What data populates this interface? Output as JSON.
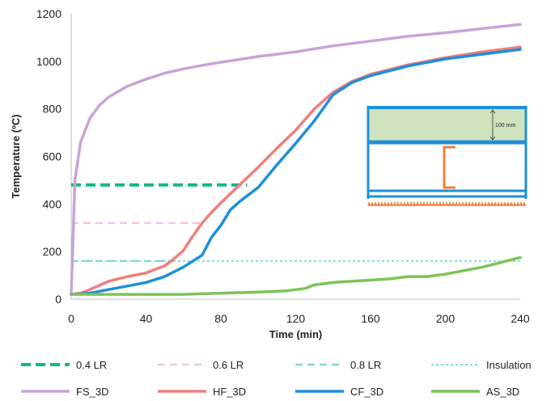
{
  "chart_data": {
    "type": "line",
    "xlabel": "Time (min)",
    "ylabel": "Temperature (ºC)",
    "xlim": [
      0,
      240
    ],
    "ylim": [
      0,
      1200
    ],
    "xticks": [
      0,
      40,
      80,
      120,
      160,
      200,
      240
    ],
    "yticks": [
      0,
      200,
      400,
      600,
      800,
      1000,
      1200
    ],
    "grid": false,
    "legend_position": "bottom",
    "colors": {
      "lr04": "#10b981",
      "lr06": "#f0c4e8",
      "lr08": "#7dd9d6",
      "insulation": "#80dede",
      "fs": "#c9a3d9",
      "hf": "#f07f7a",
      "cf": "#1f8fd9",
      "as": "#7cc456"
    },
    "series": [
      {
        "name": "0.4 LR",
        "style": "dashed-thick",
        "color_key": "lr04",
        "x": [
          0,
          94
        ],
        "y": [
          480,
          480
        ]
      },
      {
        "name": "0.6 LR",
        "style": "dashed-thin",
        "color_key": "lr06",
        "x": [
          0,
          70
        ],
        "y": [
          320,
          320
        ]
      },
      {
        "name": "0.8 LR",
        "style": "dashed-thin",
        "color_key": "lr08",
        "x": [
          0,
          57
        ],
        "y": [
          160,
          160
        ]
      },
      {
        "name": "Insulation",
        "style": "dotted",
        "color_key": "insulation",
        "x": [
          0,
          240
        ],
        "y": [
          160,
          160
        ]
      },
      {
        "name": "FS_3D",
        "style": "solid",
        "color_key": "fs",
        "x": [
          0,
          2,
          5,
          10,
          15,
          20,
          30,
          40,
          50,
          60,
          70,
          80,
          90,
          100,
          120,
          140,
          160,
          180,
          200,
          220,
          240
        ],
        "y": [
          20,
          500,
          660,
          760,
          815,
          850,
          895,
          925,
          950,
          968,
          983,
          996,
          1008,
          1020,
          1040,
          1065,
          1085,
          1105,
          1120,
          1138,
          1155
        ]
      },
      {
        "name": "HF_3D",
        "style": "solid",
        "color_key": "hf",
        "x": [
          0,
          5,
          10,
          20,
          30,
          40,
          50,
          55,
          60,
          65,
          70,
          75,
          80,
          90,
          100,
          110,
          120,
          130,
          140,
          150,
          160,
          180,
          200,
          220,
          240
        ],
        "y": [
          20,
          25,
          40,
          75,
          95,
          110,
          140,
          170,
          205,
          265,
          320,
          365,
          405,
          480,
          555,
          635,
          710,
          800,
          870,
          915,
          945,
          985,
          1015,
          1040,
          1060
        ]
      },
      {
        "name": "CF_3D",
        "style": "solid",
        "color_key": "cf",
        "x": [
          0,
          5,
          10,
          20,
          30,
          40,
          50,
          60,
          70,
          75,
          80,
          85,
          90,
          100,
          110,
          120,
          130,
          140,
          150,
          160,
          180,
          200,
          220,
          240
        ],
        "y": [
          20,
          22,
          25,
          40,
          55,
          70,
          95,
          135,
          185,
          260,
          310,
          375,
          410,
          470,
          565,
          655,
          750,
          860,
          910,
          940,
          980,
          1010,
          1030,
          1050
        ]
      },
      {
        "name": "AS_3D",
        "style": "solid",
        "color_key": "as",
        "x": [
          0,
          20,
          40,
          60,
          80,
          100,
          115,
          125,
          130,
          140,
          150,
          160,
          170,
          180,
          190,
          200,
          210,
          220,
          230,
          240
        ],
        "y": [
          20,
          20,
          20,
          20,
          25,
          30,
          35,
          45,
          60,
          70,
          75,
          80,
          85,
          95,
          95,
          105,
          120,
          135,
          155,
          175
        ]
      }
    ],
    "inset": {
      "dimension_label": "100 mm"
    }
  }
}
